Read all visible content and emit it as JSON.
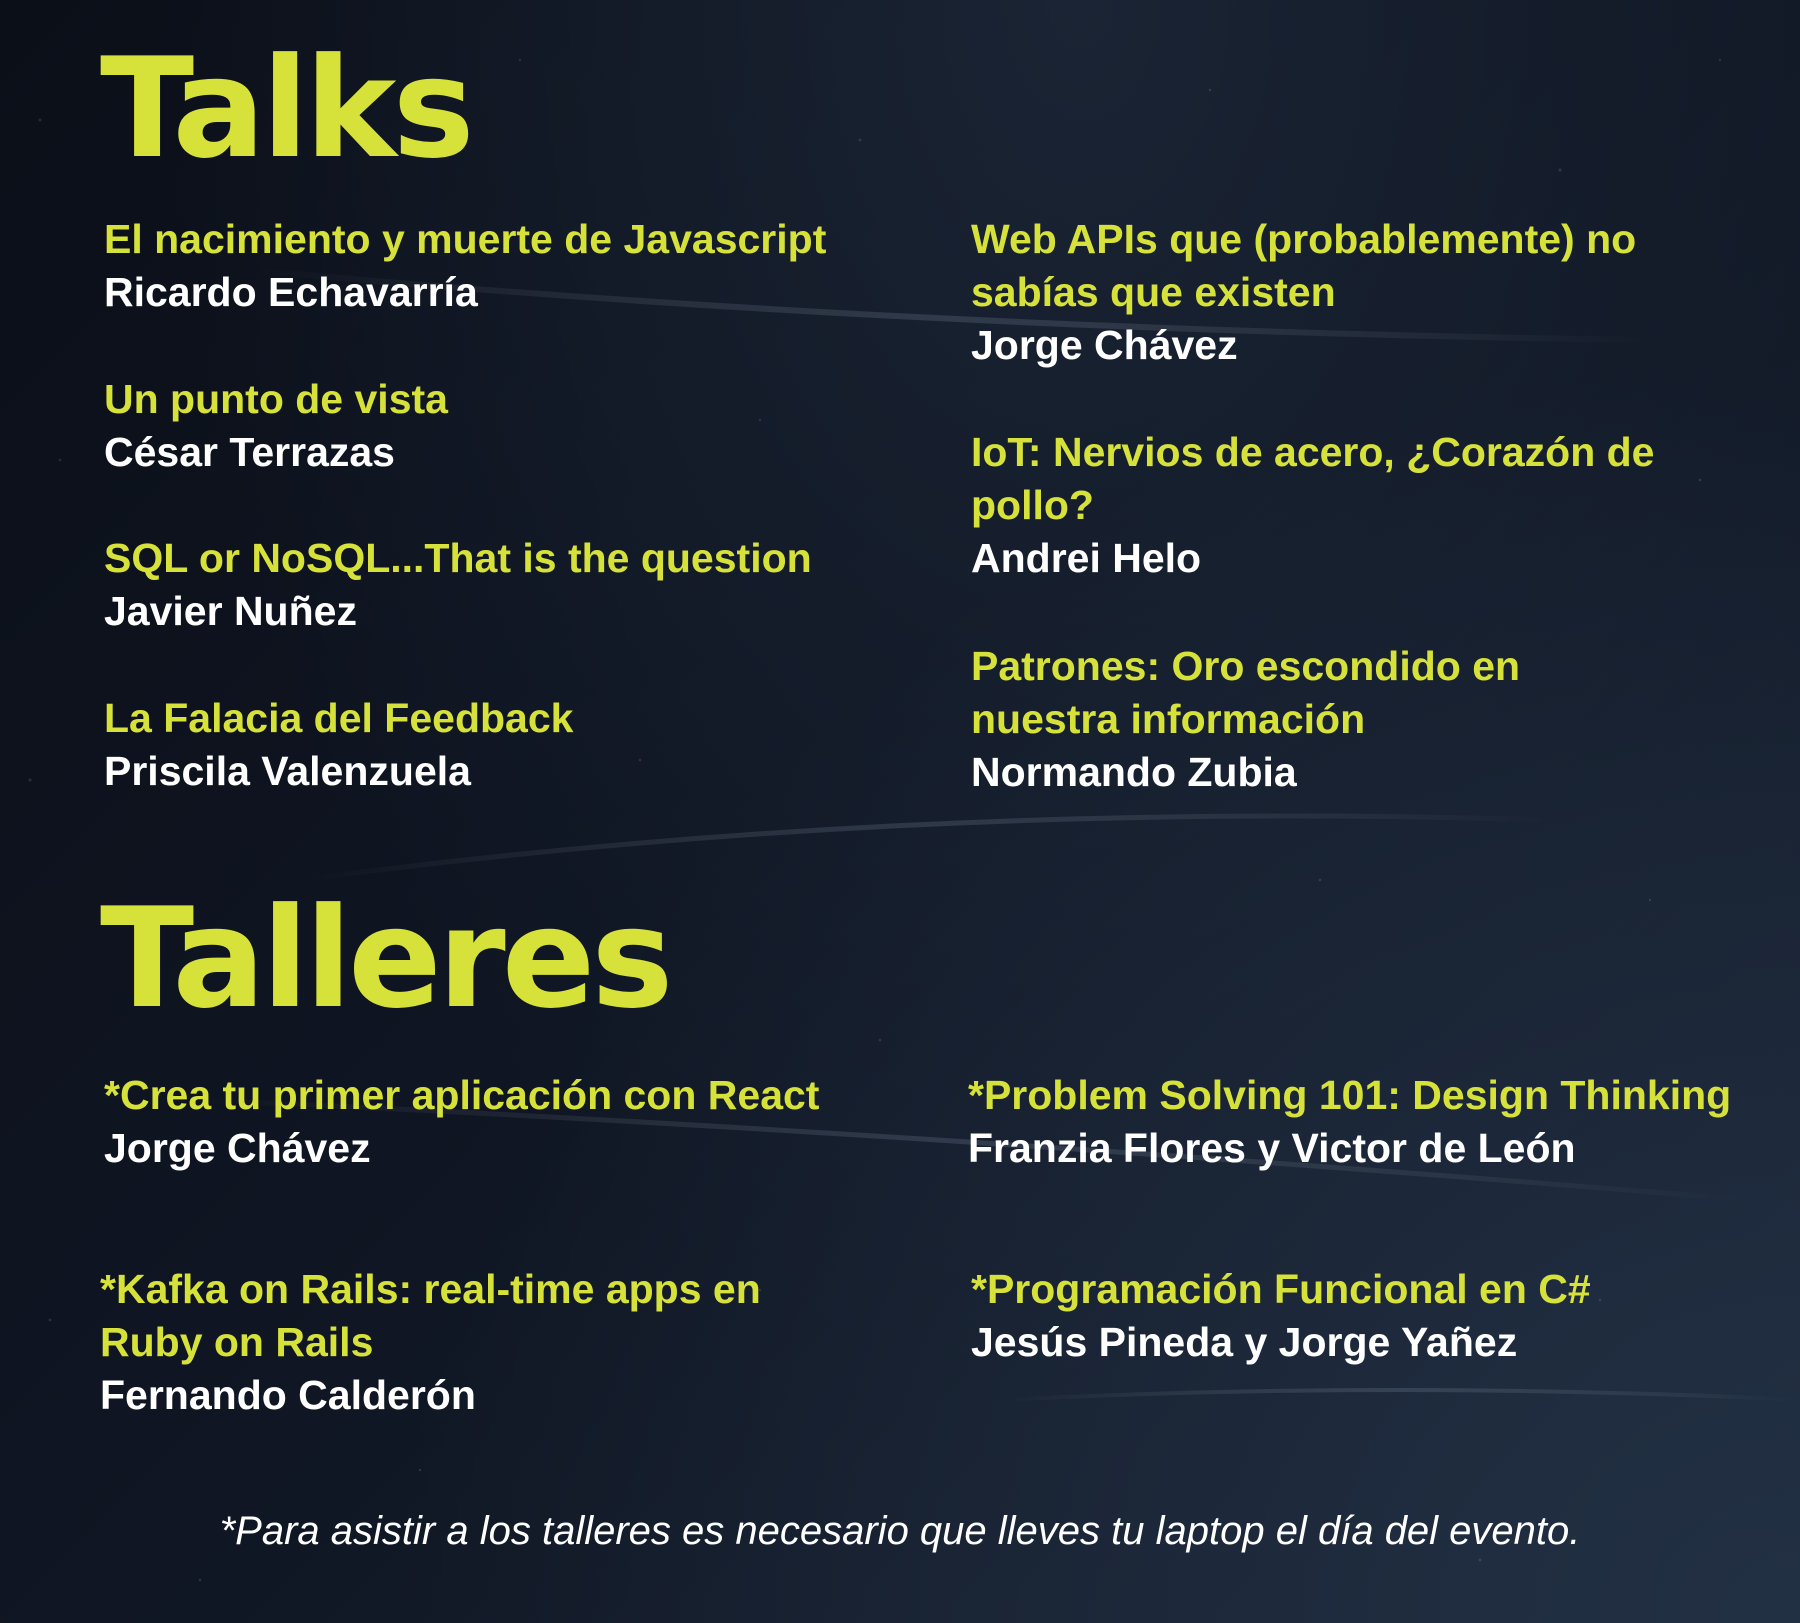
{
  "talks": {
    "heading": "Talks",
    "left": [
      {
        "title": "El nacimiento y muerte de Javascript",
        "speaker": "Ricardo Echavarría"
      },
      {
        "title": "Un punto de vista",
        "speaker": "César Terrazas"
      },
      {
        "title": "SQL or NoSQL...That is the question",
        "speaker": "Javier Nuñez"
      },
      {
        "title": "La Falacia del Feedback",
        "speaker": "Priscila Valenzuela"
      }
    ],
    "right": [
      {
        "title": "Web APIs que (probablemente) no sabías que existen",
        "speaker": "Jorge Chávez"
      },
      {
        "title": "IoT: Nervios de acero, ¿Corazón de pollo?",
        "speaker": "Andrei Helo"
      },
      {
        "title": "Patrones: Oro escondido en nuestra información",
        "speaker": "Normando Zubia"
      }
    ]
  },
  "talleres": {
    "heading": "Talleres",
    "left": [
      {
        "title": "*Crea tu primer aplicación con React",
        "speaker": "Jorge Chávez"
      },
      {
        "title": "*Kafka on Rails: real-time apps en Ruby on Rails",
        "speaker": "Fernando Calderón"
      }
    ],
    "right": [
      {
        "title": "*Problem Solving 101: Design Thinking",
        "speaker": "Franzia Flores y Victor de León"
      },
      {
        "title": "*Programación Funcional en C#",
        "speaker": "Jesús Pineda y Jorge Yañez"
      }
    ]
  },
  "footnote": "*Para asistir a los talleres es necesario que lleves tu laptop el día del evento.",
  "colors": {
    "accent": "#d6e13a",
    "text": "#ffffff",
    "background": "#0f1522"
  }
}
